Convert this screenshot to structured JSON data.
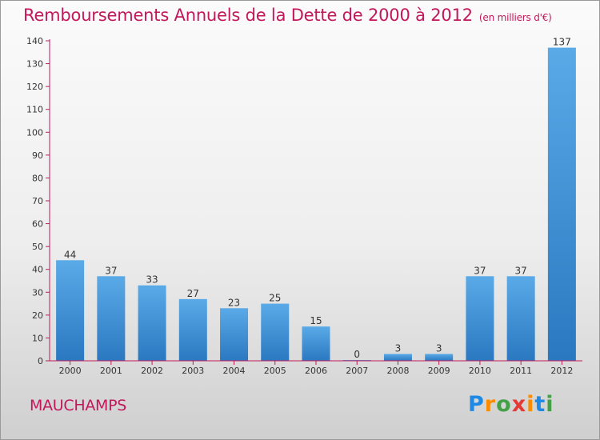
{
  "header": {
    "title": "Remboursements Annuels de la Dette de 2000 à 2012",
    "unit": "(en milliers d'€)"
  },
  "footer": {
    "city": "MAUCHAMPS",
    "brand": {
      "letters": [
        "P",
        "r",
        "o",
        "x",
        "i",
        "t",
        "i"
      ],
      "colors": [
        "#1e88e5",
        "#fb8c00",
        "#43a047",
        "#e53935",
        "#fb8c00",
        "#1e88e5",
        "#43a047"
      ]
    }
  },
  "chart_data": {
    "type": "bar",
    "categories": [
      "2000",
      "2001",
      "2002",
      "2003",
      "2004",
      "2005",
      "2006",
      "2007",
      "2008",
      "2009",
      "2010",
      "2011",
      "2012"
    ],
    "values": [
      44,
      37,
      33,
      27,
      23,
      25,
      15,
      0,
      3,
      3,
      37,
      37,
      137
    ],
    "data_labels": [
      "44",
      "37",
      "33",
      "27",
      "23",
      "25",
      "15",
      "0",
      "3",
      "3",
      "37",
      "37",
      "137"
    ],
    "y_ticks": [
      "0",
      "10",
      "20",
      "30",
      "40",
      "50",
      "60",
      "70",
      "80",
      "90",
      "100",
      "110",
      "120",
      "130",
      "140"
    ],
    "ylim": [
      0,
      140
    ],
    "grid": false,
    "colors": {
      "bar_light": "#5aaae8",
      "bar_dark": "#2a78c0",
      "axis": "#c2185b"
    }
  }
}
